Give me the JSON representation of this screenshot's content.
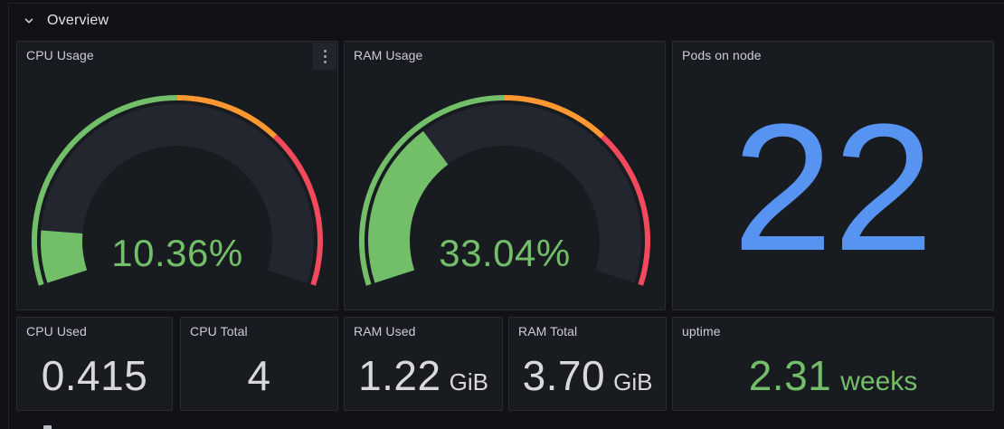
{
  "section": {
    "title": "Overview"
  },
  "colors": {
    "green": "#73BF69",
    "orange": "#FF9830",
    "red": "#F2495C",
    "blue": "#5794F2",
    "value_text": "#D8D9DA",
    "title_text": "#CCCCDC",
    "panel_bg": "#181B1F",
    "page_bg": "#111217",
    "gauge_track": "#23262E"
  },
  "chart_data": [
    {
      "type": "gauge",
      "title": "CPU Usage",
      "value": 10.36,
      "min": 0,
      "max": 100,
      "unit": "percent",
      "display": "10.36%",
      "thresholds": [
        {
          "from": 0,
          "color": "#73BF69"
        },
        {
          "from": 50,
          "color": "#FF9830"
        },
        {
          "from": 70,
          "color": "#F2495C"
        }
      ]
    },
    {
      "type": "gauge",
      "title": "RAM Usage",
      "value": 33.04,
      "min": 0,
      "max": 100,
      "unit": "percent",
      "display": "33.04%",
      "thresholds": [
        {
          "from": 0,
          "color": "#73BF69"
        },
        {
          "from": 50,
          "color": "#FF9830"
        },
        {
          "from": 70,
          "color": "#F2495C"
        }
      ]
    },
    {
      "type": "stat",
      "title": "Pods on node",
      "value": 22,
      "display": "22",
      "color": "#5794F2"
    },
    {
      "type": "stat",
      "title": "CPU Used",
      "value": 0.415,
      "display": "0.415",
      "color": "#D8D9DA"
    },
    {
      "type": "stat",
      "title": "CPU Total",
      "value": 4,
      "display": "4",
      "color": "#D8D9DA"
    },
    {
      "type": "stat",
      "title": "RAM Used",
      "value": 1.22,
      "display": "1.22",
      "unit": "GiB",
      "color": "#D8D9DA"
    },
    {
      "type": "stat",
      "title": "RAM Total",
      "value": 3.7,
      "display": "3.70",
      "unit": "GiB",
      "color": "#D8D9DA"
    },
    {
      "type": "stat",
      "title": "uptime",
      "value": 2.31,
      "display": "2.31",
      "unit": "weeks",
      "color": "#73BF69"
    }
  ]
}
